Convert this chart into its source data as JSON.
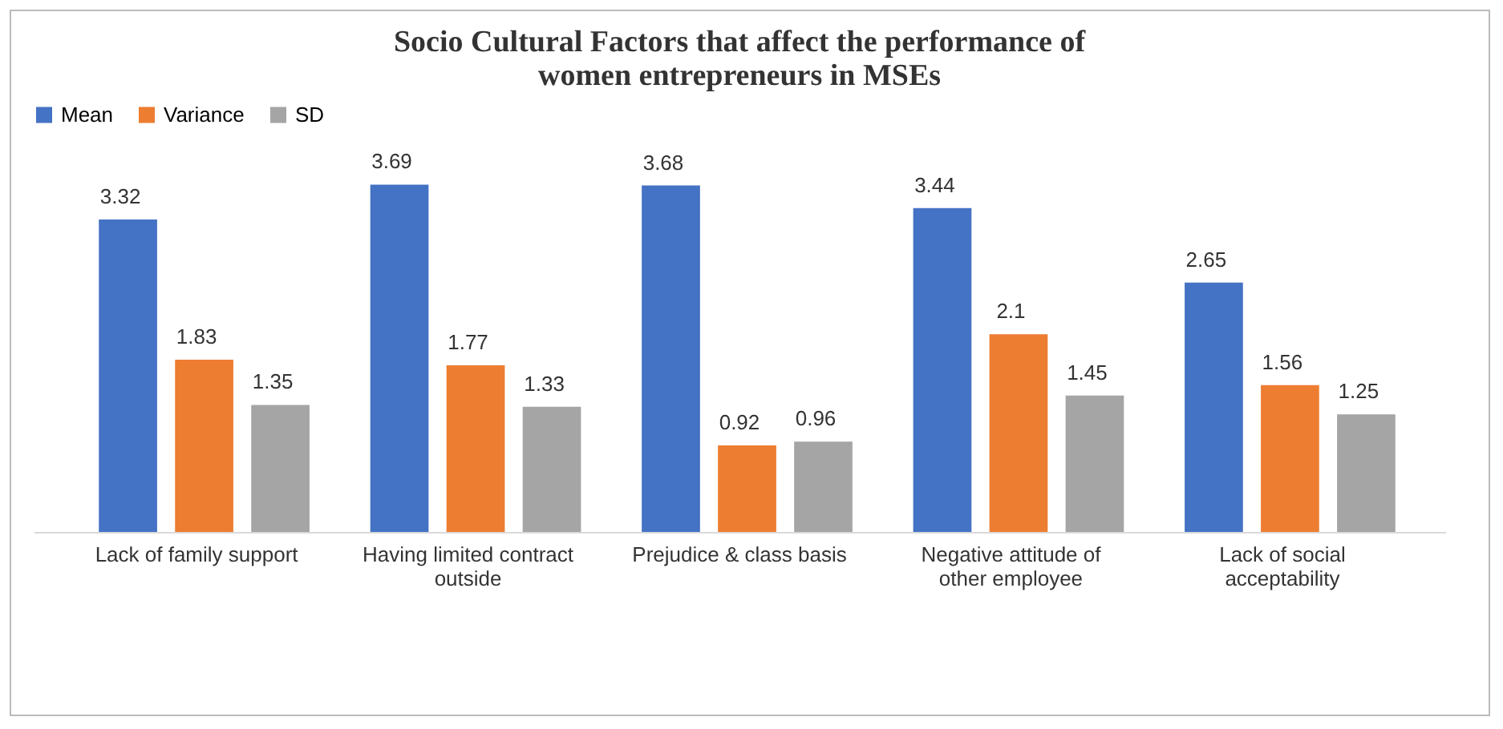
{
  "chart_data": {
    "type": "bar",
    "title": "Socio Cultural Factors that affect the performance of women entrepreneurs in MSEs",
    "categories": [
      "Lack of family support",
      "Having limited contract outside",
      "Prejudice & class basis",
      "Negative attitude of other employee",
      "Lack of social acceptability"
    ],
    "series": [
      {
        "name": "Mean",
        "color": "#4472c4",
        "values": [
          3.32,
          3.69,
          3.68,
          3.44,
          2.65
        ]
      },
      {
        "name": "Variance",
        "color": "#ed7d31",
        "values": [
          1.83,
          1.77,
          0.92,
          2.1,
          1.56
        ]
      },
      {
        "name": "SD",
        "color": "#a5a5a5",
        "values": [
          1.35,
          1.33,
          0.96,
          1.45,
          1.25
        ]
      }
    ],
    "data_labels": true,
    "legend": "top",
    "grid": false
  }
}
